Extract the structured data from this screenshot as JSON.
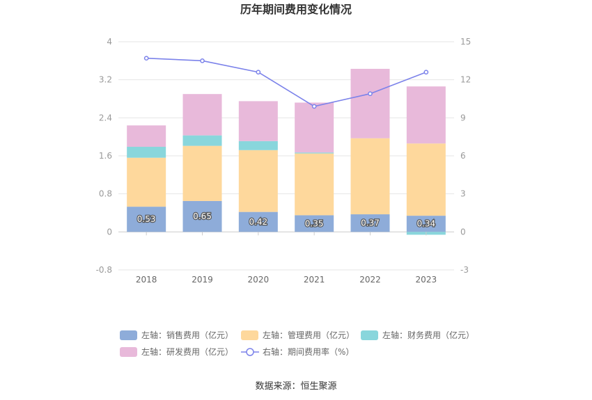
{
  "chart_data": {
    "type": "bar",
    "title": "历年期间费用变化情况",
    "categories": [
      "2018",
      "2019",
      "2020",
      "2021",
      "2022",
      "2023"
    ],
    "left_axis": {
      "ylim": [
        -0.8,
        4
      ],
      "ticks": [
        "-0.8",
        "0",
        "0.8",
        "1.6",
        "2.4",
        "3.2",
        "4"
      ]
    },
    "right_axis": {
      "ylim": [
        -3,
        15
      ],
      "ticks": [
        "-3",
        "0",
        "3",
        "6",
        "9",
        "12",
        "15"
      ]
    },
    "series": [
      {
        "name": "左轴：销售费用（亿元）",
        "axis": "left",
        "kind": "bar",
        "color": "#8eacd9",
        "values": [
          0.53,
          0.65,
          0.42,
          0.35,
          0.37,
          0.34
        ],
        "labels": [
          "0.53",
          "0.65",
          "0.42",
          "0.35",
          "0.37",
          "0.34"
        ]
      },
      {
        "name": "左轴：管理费用（亿元）",
        "axis": "left",
        "kind": "bar",
        "color": "#fed89c",
        "values": [
          1.03,
          1.16,
          1.3,
          1.3,
          1.6,
          1.52
        ]
      },
      {
        "name": "左轴：财务费用（亿元）",
        "axis": "left",
        "kind": "bar",
        "color": "#89d6dc",
        "values": [
          0.23,
          0.22,
          0.19,
          0.02,
          0.0,
          -0.06
        ]
      },
      {
        "name": "左轴：研发费用（亿元）",
        "axis": "left",
        "kind": "bar",
        "color": "#e8b9da",
        "values": [
          0.45,
          0.87,
          0.84,
          1.05,
          1.46,
          1.2
        ]
      },
      {
        "name": "右轴：期间费用率（%）",
        "axis": "right",
        "kind": "line",
        "color": "#7b82ea",
        "values": [
          13.7,
          13.5,
          12.6,
          9.9,
          10.9,
          12.6
        ]
      }
    ],
    "legend_position": "bottom",
    "grid": true
  },
  "source": "数据来源：恒生聚源"
}
